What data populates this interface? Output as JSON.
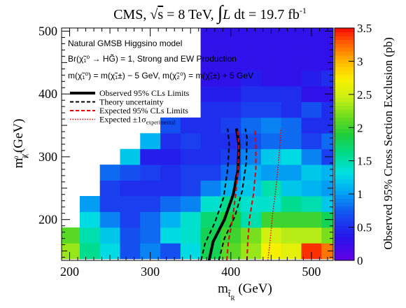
{
  "chart_data": {
    "type": "heatmap",
    "title_parts": {
      "prefix": "CMS, ",
      "sqrt_s": "s",
      "energy": " = 8 TeV, ",
      "lumi_L": "L",
      "lumi_dt": " dt = 19.7 fb",
      "lumi_exp": "-1"
    },
    "xlabel": {
      "main": "m",
      "sub": "t̃",
      "subsub": "R",
      "unit": " (GeV)"
    },
    "ylabel": {
      "main": "m",
      "sub": "χ̃",
      "subsup": "0",
      "subsub": "1",
      "unit": " (GeV)"
    },
    "zlabel": "Observed 95% Cross Section Exclusion (pb)",
    "xlim": [
      190,
      527
    ],
    "ylim": [
      135,
      505
    ],
    "zlim": [
      0,
      3.5
    ],
    "x_ticks": [
      200,
      300,
      400,
      500
    ],
    "y_ticks": [
      200,
      300,
      400,
      500
    ],
    "z_ticks": [
      "0",
      "0.5",
      "1",
      "1.5",
      "2",
      "2.5",
      "3",
      "3.5"
    ],
    "model_text": {
      "line1": "Natural GMSB Higgsino model",
      "line2": "Br(χ̃₁⁰ → HG̃) = 1, Strong and EW Production",
      "line3": "m(χ̃₁⁰) = m(χ̃₁±) − 5 GeV, m(χ̃₂⁰) = m(χ̃₁±) + 5 GeV"
    },
    "legend": [
      {
        "label": "Observed 95% CLs Limits",
        "style": "observed",
        "color": "#000000"
      },
      {
        "label": "Theory uncertainty",
        "style": "theory",
        "color": "#000000"
      },
      {
        "label": "Expected 95% CLs Limits",
        "style": "expected",
        "color": "#e00000"
      },
      {
        "label": "Expected ±1σ",
        "sub": "experimental",
        "style": "expected-sigma",
        "color": "#e00000"
      }
    ],
    "grid_x_step": 25,
    "grid_y_step": 25,
    "grid_x_start": 187.5,
    "grid_y_start": 137.5,
    "cells": [
      [
        2.3,
        1.6,
        1.3,
        0.7,
        0.9,
        0.7,
        1.3,
        1.8,
        2.1,
        2.3,
        2.7,
        2.6,
        3.4,
        3.2
      ],
      [
        2.1,
        1.5,
        1.2,
        0.7,
        0.8,
        1.3,
        1.4,
        1.8,
        2.0,
        2.2,
        2.5,
        2.4,
        2.4,
        2.2
      ],
      [
        null,
        1.3,
        0.9,
        0.6,
        0.8,
        1.1,
        1.4,
        1.7,
        1.9,
        1.5,
        2.0,
        2.0,
        2.0,
        1.8
      ],
      [
        null,
        1.0,
        0.6,
        0.6,
        0.6,
        0.8,
        0.9,
        1.4,
        1.6,
        1.4,
        1.4,
        1.6,
        1.5,
        1.2
      ],
      [
        null,
        null,
        0.6,
        0.5,
        0.5,
        0.5,
        0.6,
        0.9,
        1.1,
        1.2,
        1.5,
        1.2,
        1.1,
        1.0
      ],
      [
        null,
        null,
        0.8,
        0.7,
        0.6,
        0.5,
        0.6,
        0.6,
        0.8,
        1.1,
        1.0,
        1.0,
        1.2,
        1.1
      ],
      [
        null,
        null,
        null,
        1.2,
        0.4,
        0.4,
        0.5,
        0.5,
        0.6,
        0.9,
        1.2,
        1.3,
        0.9,
        0.6
      ],
      [
        null,
        null,
        null,
        null,
        1.1,
        0.5,
        0.6,
        0.5,
        0.5,
        0.7,
        0.8,
        0.8,
        0.6,
        0.8
      ],
      [
        null,
        null,
        null,
        null,
        null,
        0.7,
        0.5,
        0.5,
        0.6,
        0.8,
        0.9,
        0.8,
        0.5,
        0.5
      ],
      [
        null,
        null,
        null,
        null,
        null,
        null,
        null,
        0.5,
        0.5,
        0.6,
        0.6,
        0.5,
        0.7,
        0.5
      ],
      [
        null,
        null,
        null,
        null,
        null,
        null,
        null,
        0.4,
        0.4,
        0.5,
        0.5,
        0.5,
        0.3,
        0.3
      ],
      [
        null,
        null,
        null,
        null,
        null,
        null,
        null,
        0.3,
        0.3,
        0.4,
        0.3,
        0.3,
        0.4,
        0.5
      ],
      [
        null,
        null,
        null,
        null,
        null,
        null,
        null,
        0.3,
        0.3,
        0.3,
        0.3,
        0.3,
        0.3,
        0.3
      ],
      [
        null,
        null,
        null,
        null,
        null,
        null,
        null,
        0.3,
        0.3,
        0.3,
        0.3,
        0.3,
        0.3,
        0.3
      ],
      [
        null,
        null,
        null,
        null,
        null,
        null,
        null,
        0.3,
        0.3,
        0.3,
        0.3,
        0.3,
        0.3,
        0.3
      ],
      [
        null,
        null,
        null,
        null,
        null,
        null,
        null,
        0.25,
        0.25,
        0.25,
        0.25,
        0.25,
        0.25,
        0.25
      ]
    ],
    "curves": {
      "observed": [
        [
          373,
          135
        ],
        [
          378,
          165
        ],
        [
          392,
          200
        ],
        [
          403,
          240
        ],
        [
          409,
          280
        ],
        [
          410,
          320
        ],
        [
          407,
          345
        ]
      ],
      "theory_low": [
        [
          363,
          135
        ],
        [
          368,
          162
        ],
        [
          380,
          195
        ],
        [
          391,
          235
        ],
        [
          396,
          280
        ],
        [
          398,
          320
        ],
        [
          396,
          345
        ]
      ],
      "theory_high": [
        [
          385,
          135
        ],
        [
          392,
          170
        ],
        [
          405,
          205
        ],
        [
          414,
          245
        ],
        [
          419,
          290
        ],
        [
          420,
          330
        ],
        [
          418,
          345
        ]
      ],
      "expected": [
        [
          420,
          135
        ],
        [
          421,
          165
        ],
        [
          423,
          200
        ],
        [
          428,
          240
        ],
        [
          431,
          280
        ],
        [
          431,
          320
        ],
        [
          430,
          345
        ]
      ],
      "expected_low": [
        [
          395,
          135
        ],
        [
          397,
          165
        ],
        [
          402,
          200
        ],
        [
          406,
          240
        ],
        [
          409,
          280
        ],
        [
          410,
          320
        ],
        [
          408,
          345
        ]
      ],
      "expected_high": [
        [
          446,
          135
        ],
        [
          449,
          170
        ],
        [
          452,
          210
        ],
        [
          456,
          250
        ],
        [
          459,
          290
        ],
        [
          461,
          320
        ],
        [
          462,
          345
        ]
      ]
    }
  }
}
